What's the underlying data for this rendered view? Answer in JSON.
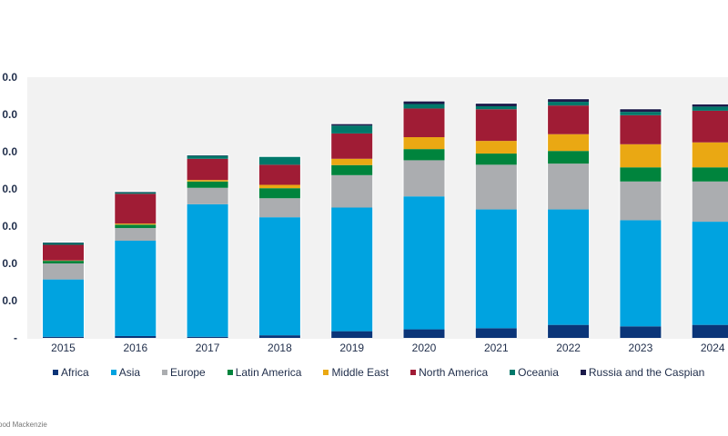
{
  "chart_data": {
    "type": "bar",
    "stacked": true,
    "title": "",
    "xlabel": "",
    "ylabel": "",
    "categories": [
      "2015",
      "2016",
      "2017",
      "2018",
      "2019",
      "2020",
      "2021",
      "2022",
      "2023",
      "2024"
    ],
    "y_tick_labels": [
      "-",
      "0.0",
      "0.0",
      "0.0",
      "0.0",
      "0.0",
      "0.0",
      "0.0"
    ],
    "ylim": [
      0,
      70
    ],
    "grid": false,
    "legend_position": "bottom",
    "series": [
      {
        "name": "Africa",
        "color": "#0b3578",
        "values": [
          0.3,
          0.5,
          0.3,
          0.7,
          1.8,
          2.3,
          2.6,
          3.5,
          3.1,
          3.5
        ]
      },
      {
        "name": "Asia",
        "color": "#00a3e0",
        "values": [
          15.4,
          25.6,
          35.6,
          31.7,
          33.2,
          35.7,
          31.9,
          31.0,
          28.5,
          27.7
        ]
      },
      {
        "name": "Europe",
        "color": "#abadb0",
        "values": [
          4.3,
          3.4,
          4.4,
          5.1,
          8.7,
          9.7,
          12.0,
          12.3,
          10.4,
          10.8
        ]
      },
      {
        "name": "Latin America",
        "color": "#00843d",
        "values": [
          0.7,
          0.9,
          1.7,
          2.7,
          2.7,
          3.0,
          3.0,
          3.4,
          3.8,
          3.8
        ]
      },
      {
        "name": "Middle East",
        "color": "#eaa813",
        "values": [
          0.1,
          0.3,
          0.4,
          0.9,
          1.7,
          3.2,
          3.4,
          4.5,
          6.2,
          6.7
        ]
      },
      {
        "name": "North America",
        "color": "#a01c35",
        "values": [
          4.2,
          8.0,
          5.7,
          5.4,
          6.8,
          7.7,
          8.5,
          7.7,
          7.8,
          8.5
        ]
      },
      {
        "name": "Oceania",
        "color": "#00786a",
        "values": [
          0.5,
          0.4,
          0.8,
          2.1,
          2.1,
          1.2,
          0.8,
          1.0,
          0.9,
          1.1
        ]
      },
      {
        "name": "Russia and the Caspian",
        "color": "#1c1a4a",
        "values": [
          0.1,
          0.1,
          0.1,
          0.0,
          0.4,
          0.7,
          0.7,
          0.7,
          0.7,
          0.6
        ]
      }
    ]
  },
  "source": "ood Mackenzie"
}
